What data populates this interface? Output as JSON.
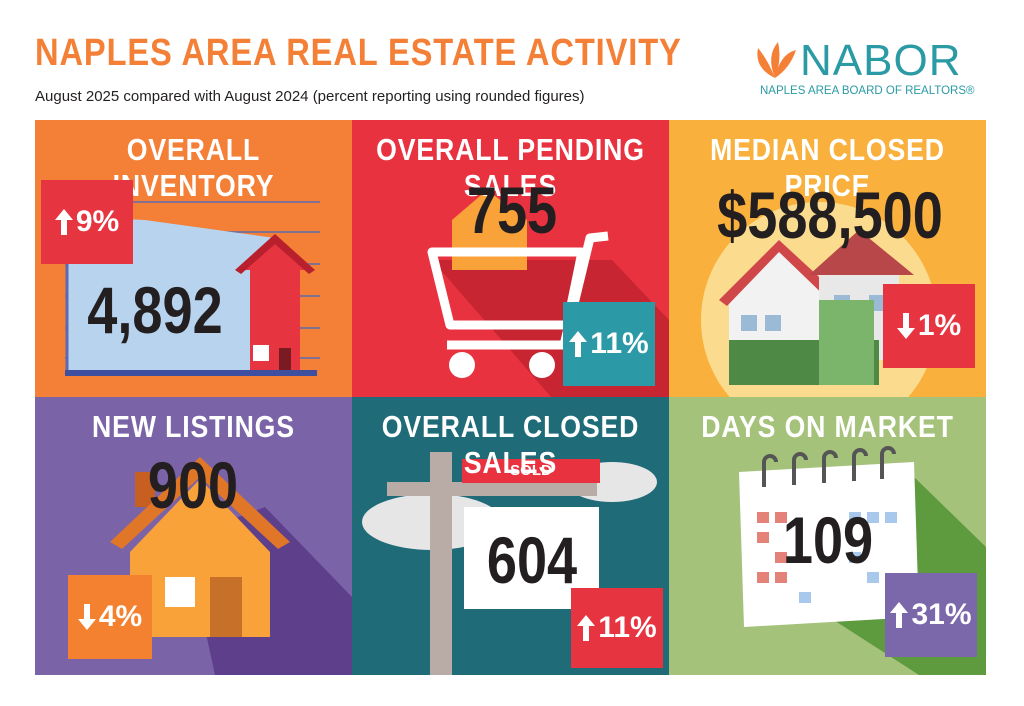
{
  "header": {
    "title": "NAPLES AREA REAL ESTATE ACTIVITY",
    "subtitle": "August 2025 compared with August 2024 (percent reporting using rounded figures)"
  },
  "logo": {
    "name": "NABOR",
    "tagline": "NAPLES AREA BOARD OF REALTORS®"
  },
  "tiles": [
    {
      "title": "OVERALL INVENTORY",
      "value": "4,892",
      "change": "9%",
      "direction": "up"
    },
    {
      "title": "OVERALL PENDING SALES",
      "value": "755",
      "change": "11%",
      "direction": "up"
    },
    {
      "title": "MEDIAN CLOSED PRICE",
      "value": "$588,500",
      "change": "1%",
      "direction": "down"
    },
    {
      "title": "NEW LISTINGS",
      "value": "900",
      "change": "4%",
      "direction": "down"
    },
    {
      "title": "OVERALL CLOSED SALES",
      "value": "604",
      "change": "11%",
      "direction": "up",
      "sign": "SOLD"
    },
    {
      "title": "DAYS ON MARKET",
      "value": "109",
      "change": "31%",
      "direction": "up"
    }
  ]
}
